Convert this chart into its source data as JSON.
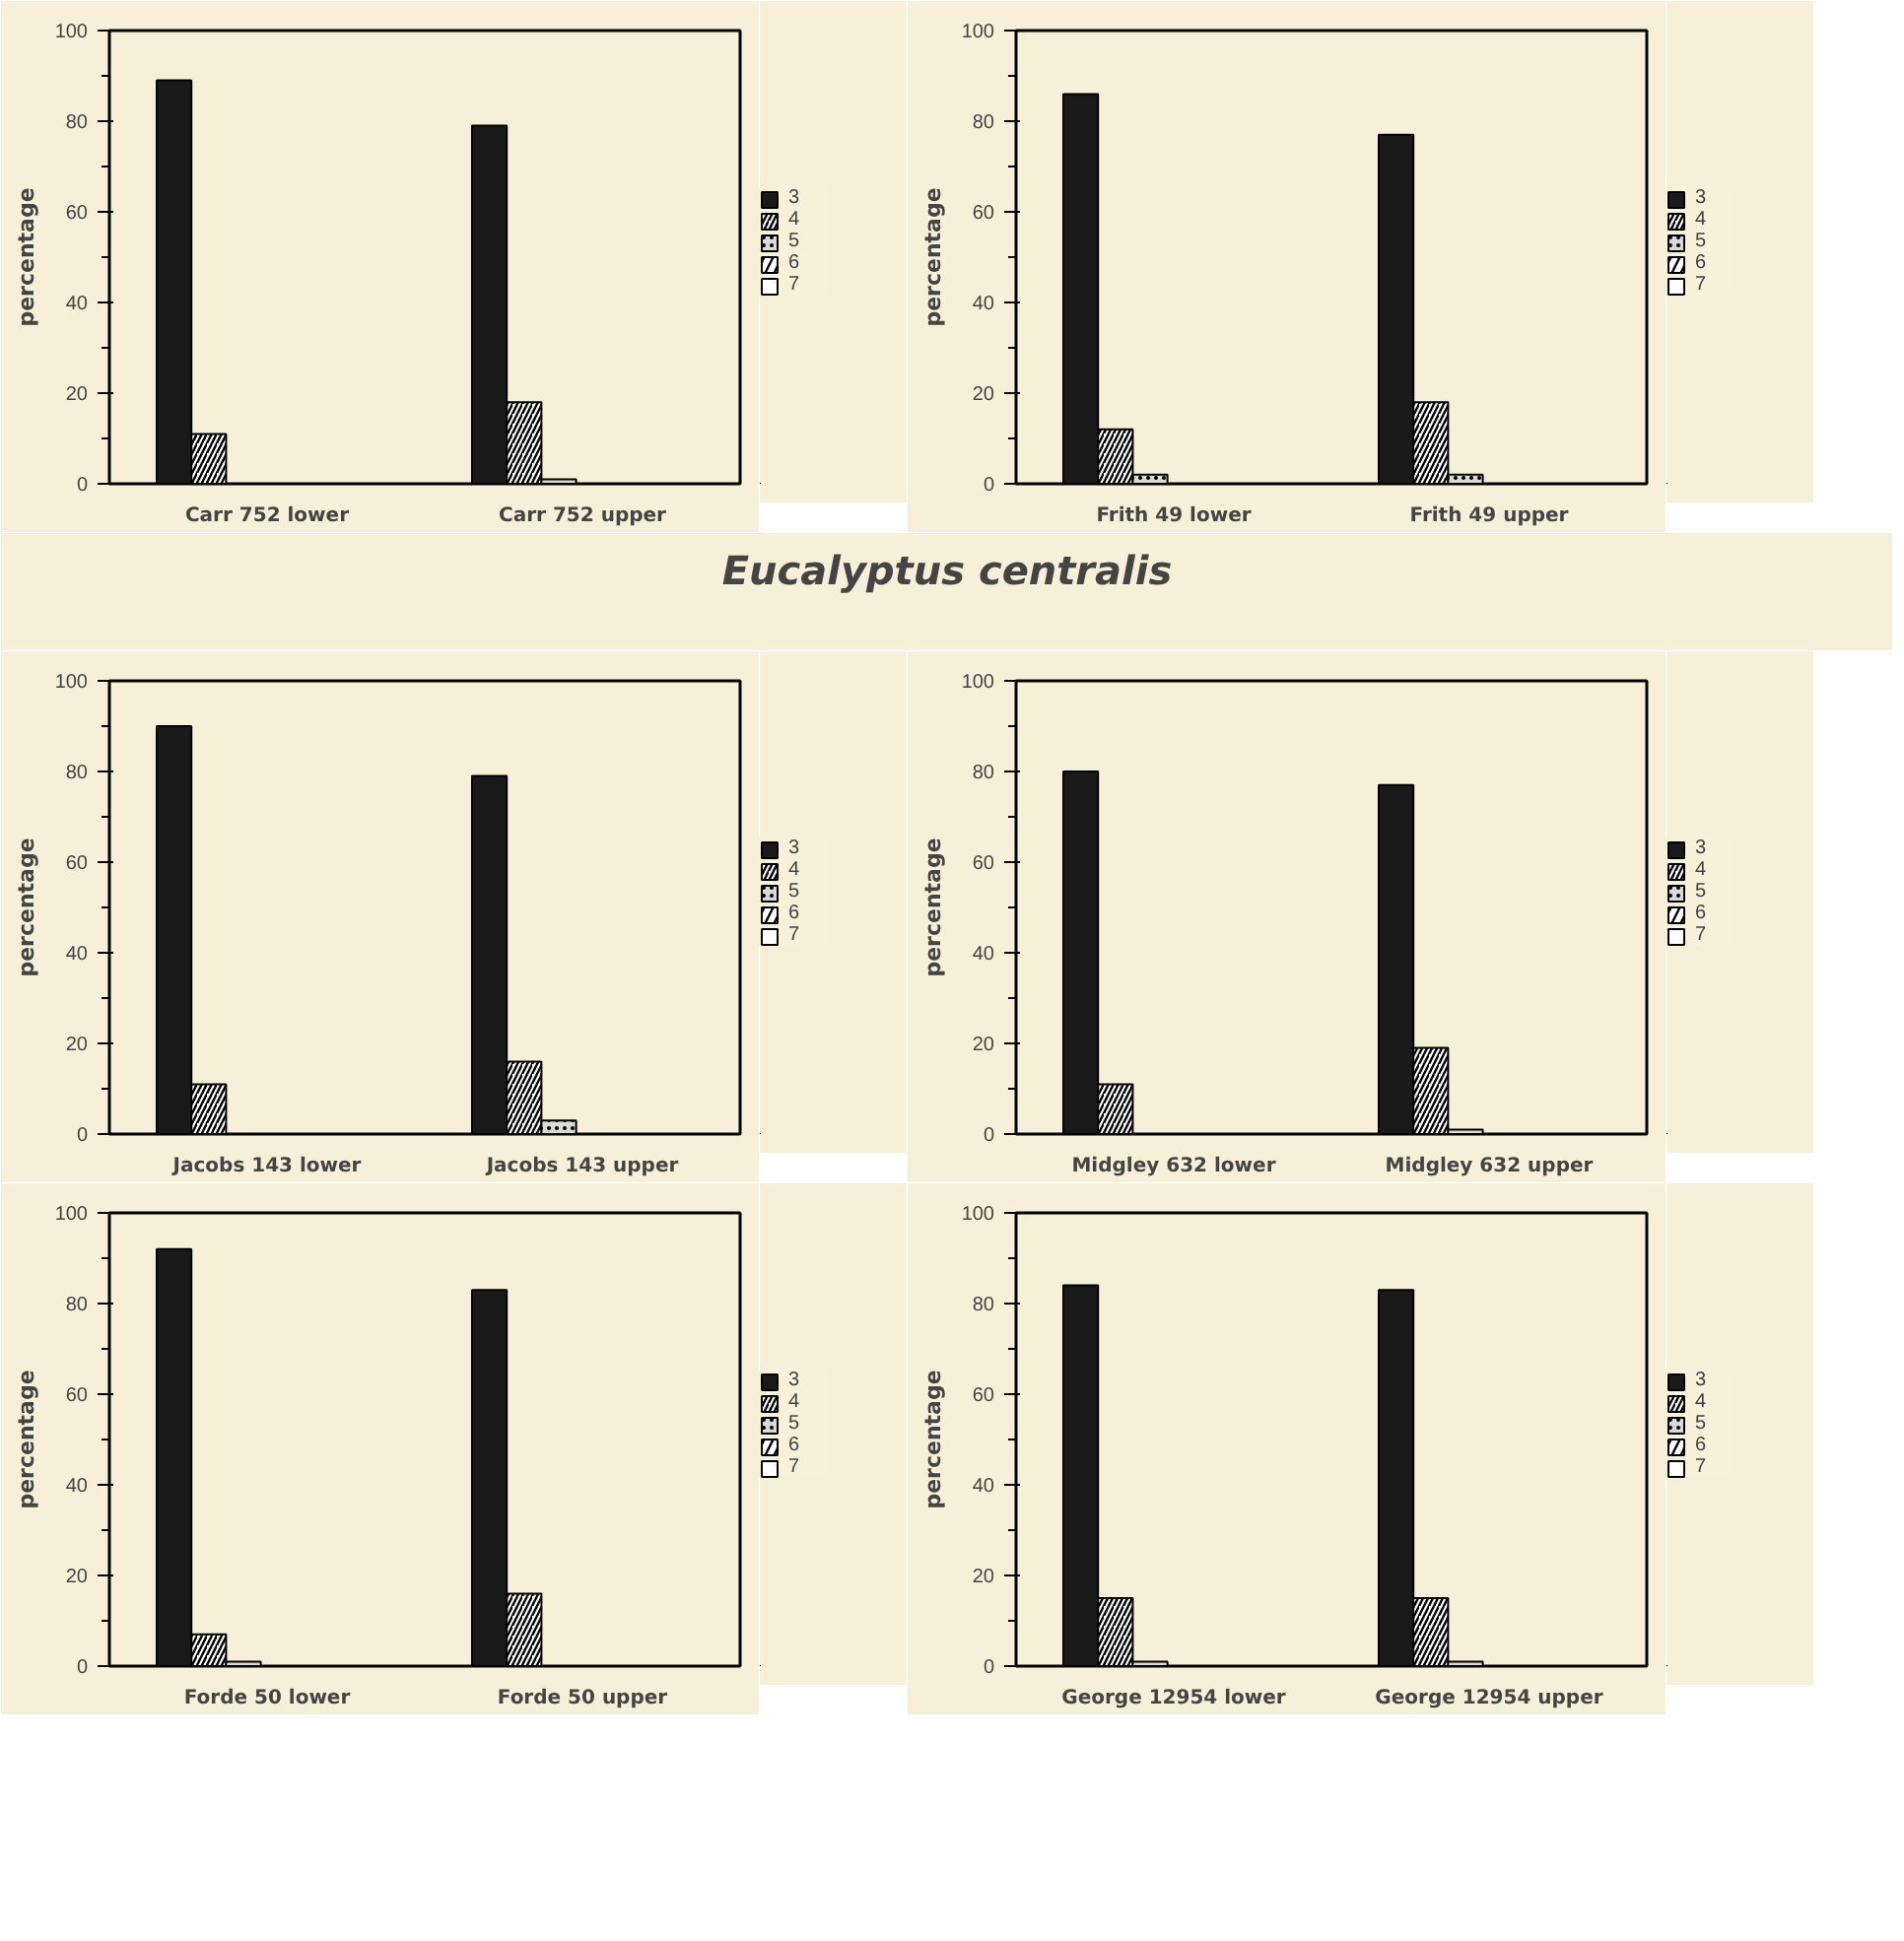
{
  "chart_data": [
    {
      "type": "bar",
      "categories": [
        "Carr 752 lower",
        "Carr 752 upper"
      ],
      "ylabel": "percentage",
      "ylim": [
        0,
        100
      ],
      "yticks": [
        0,
        20,
        40,
        60,
        80,
        100
      ],
      "legend": "right",
      "grid": false,
      "series": [
        {
          "name": "3",
          "color": "#1a1a1a",
          "values": [
            89,
            79
          ]
        },
        {
          "name": "4",
          "color": "#ffffff",
          "values": [
            11,
            18
          ]
        },
        {
          "name": "5",
          "color": "#d9d9d9",
          "values": [
            0,
            1
          ]
        },
        {
          "name": "6",
          "color": "#ffffff",
          "values": [
            0,
            0
          ]
        },
        {
          "name": "7",
          "color": "#ffffff",
          "values": [
            0,
            0
          ]
        }
      ]
    },
    {
      "type": "bar",
      "categories": [
        "Frith 49 lower",
        "Frith 49 upper"
      ],
      "ylabel": "percentage",
      "ylim": [
        0,
        100
      ],
      "yticks": [
        0,
        20,
        40,
        60,
        80,
        100
      ],
      "legend": "right",
      "grid": false,
      "series": [
        {
          "name": "3",
          "color": "#1a1a1a",
          "values": [
            86,
            77
          ]
        },
        {
          "name": "4",
          "color": "#ffffff",
          "values": [
            12,
            18
          ]
        },
        {
          "name": "5",
          "color": "#d9d9d9",
          "values": [
            2,
            2
          ]
        },
        {
          "name": "6",
          "color": "#ffffff",
          "values": [
            0,
            0
          ]
        },
        {
          "name": "7",
          "color": "#ffffff",
          "values": [
            0,
            0
          ]
        }
      ]
    },
    {
      "type": "other",
      "title": "Eucalyptus centralis"
    },
    {
      "type": "bar",
      "categories": [
        "Jacobs 143 lower",
        "Jacobs 143 upper"
      ],
      "ylabel": "percentage",
      "ylim": [
        0,
        100
      ],
      "yticks": [
        0,
        20,
        40,
        60,
        80,
        100
      ],
      "legend": "right",
      "grid": false,
      "series": [
        {
          "name": "3",
          "color": "#1a1a1a",
          "values": [
            90,
            79
          ]
        },
        {
          "name": "4",
          "color": "#ffffff",
          "values": [
            11,
            16
          ]
        },
        {
          "name": "5",
          "color": "#d9d9d9",
          "values": [
            0,
            3
          ]
        },
        {
          "name": "6",
          "color": "#ffffff",
          "values": [
            0,
            0
          ]
        },
        {
          "name": "7",
          "color": "#ffffff",
          "values": [
            0,
            0
          ]
        }
      ]
    },
    {
      "type": "bar",
      "categories": [
        "Midgley 632 lower",
        "Midgley 632 upper"
      ],
      "ylabel": "percentage",
      "ylim": [
        0,
        100
      ],
      "yticks": [
        0,
        20,
        40,
        60,
        80,
        100
      ],
      "legend": "right",
      "grid": false,
      "series": [
        {
          "name": "3",
          "color": "#1a1a1a",
          "values": [
            80,
            77
          ]
        },
        {
          "name": "4",
          "color": "#ffffff",
          "values": [
            11,
            19
          ]
        },
        {
          "name": "5",
          "color": "#d9d9d9",
          "values": [
            0,
            1
          ]
        },
        {
          "name": "6",
          "color": "#ffffff",
          "values": [
            0,
            0
          ]
        },
        {
          "name": "7",
          "color": "#ffffff",
          "values": [
            0,
            0
          ]
        }
      ]
    },
    {
      "type": "bar",
      "categories": [
        "Forde 50 lower",
        "Forde 50 upper"
      ],
      "ylabel": "percentage",
      "ylim": [
        0,
        100
      ],
      "yticks": [
        0,
        20,
        40,
        60,
        80,
        100
      ],
      "legend": "right",
      "grid": false,
      "series": [
        {
          "name": "3",
          "color": "#1a1a1a",
          "values": [
            92,
            83
          ]
        },
        {
          "name": "4",
          "color": "#ffffff",
          "values": [
            7,
            16
          ]
        },
        {
          "name": "5",
          "color": "#d9d9d9",
          "values": [
            1,
            0
          ]
        },
        {
          "name": "6",
          "color": "#ffffff",
          "values": [
            0,
            0
          ]
        },
        {
          "name": "7",
          "color": "#ffffff",
          "values": [
            0,
            0
          ]
        }
      ]
    },
    {
      "type": "bar",
      "categories": [
        "George 12954 lower",
        "George 12954 upper"
      ],
      "ylabel": "percentage",
      "ylim": [
        0,
        100
      ],
      "yticks": [
        0,
        20,
        40,
        60,
        80,
        100
      ],
      "legend": "right",
      "grid": false,
      "series": [
        {
          "name": "3",
          "color": "#1a1a1a",
          "values": [
            84,
            83
          ]
        },
        {
          "name": "4",
          "color": "#ffffff",
          "values": [
            15,
            15
          ]
        },
        {
          "name": "5",
          "color": "#d9d9d9",
          "values": [
            1,
            1
          ]
        },
        {
          "name": "6",
          "color": "#ffffff",
          "values": [
            0,
            0
          ]
        },
        {
          "name": "7",
          "color": "#ffffff",
          "values": [
            0,
            0
          ]
        }
      ]
    }
  ]
}
